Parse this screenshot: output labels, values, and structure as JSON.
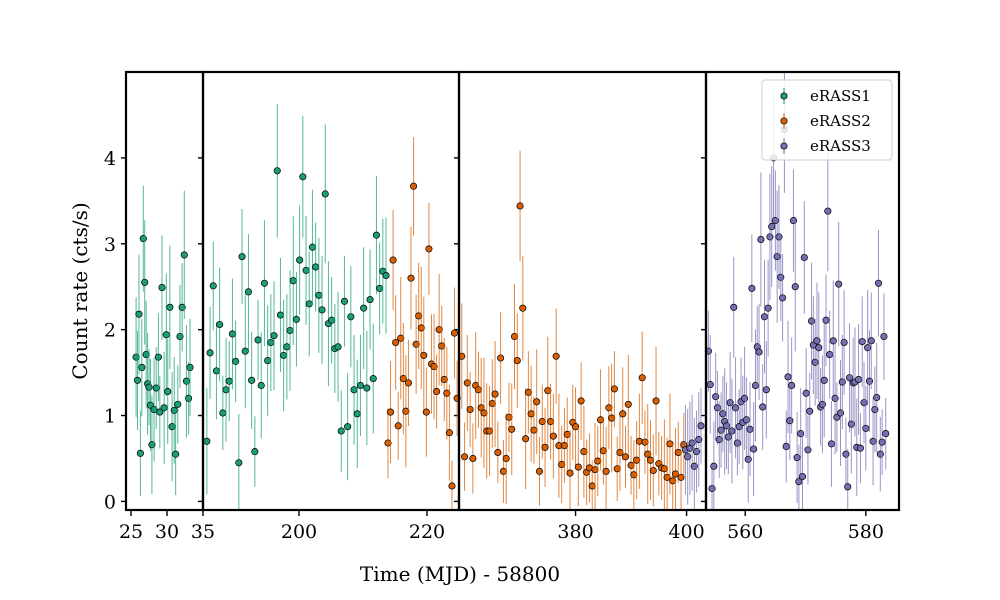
{
  "chart_data": {
    "type": "scatter",
    "title": "",
    "xlabel": "Time (MJD) - 58800",
    "ylabel": "Count rate (cts/s)",
    "ylim": [
      -0.1,
      5.0
    ],
    "yticks": [
      0,
      1,
      2,
      3,
      4
    ],
    "grid": false,
    "legend_position": "top-right",
    "colors": {
      "eRASS1": "#1b9e77",
      "eRASS2": "#d95f02",
      "eRASS3": "#7570b3"
    },
    "panels": [
      {
        "xlim": [
          24.3,
          35.0
        ],
        "xticks": [
          25,
          30,
          35
        ]
      },
      {
        "xlim": [
          185.0,
          225.0
        ],
        "xticks": [
          200,
          220
        ]
      },
      {
        "xlim": [
          359.0,
          403.5
        ],
        "xticks": [
          380,
          400
        ]
      },
      {
        "xlim": [
          553.5,
          585.5
        ],
        "xticks": [
          560,
          580
        ]
      }
    ],
    "series": [
      {
        "name": "eRASS1",
        "panels": [
          {
            "x": [
              25.7,
              25.9,
              26.1,
              26.3,
              26.5,
              26.7,
              26.9,
              27.1,
              27.3,
              27.5,
              27.7,
              27.9,
              28.2,
              28.5,
              28.8,
              29.0,
              29.3,
              29.6,
              29.9,
              30.1,
              30.4,
              30.7,
              31.0,
              31.2,
              31.5,
              31.8,
              32.1,
              32.4,
              32.7,
              33.0,
              33.2
            ],
            "y": [
              1.68,
              1.41,
              2.18,
              0.56,
              1.56,
              3.06,
              2.55,
              1.71,
              1.37,
              1.33,
              1.12,
              0.66,
              1.07,
              1.32,
              1.68,
              1.04,
              2.49,
              1.09,
              1.94,
              1.28,
              2.26,
              0.87,
              1.06,
              0.55,
              1.13,
              1.92,
              2.26,
              2.87,
              1.4,
              1.2,
              1.56
            ]
          },
          {
            "x": [
              185.6,
              186.1,
              186.6,
              187.1,
              187.6,
              188.1,
              188.6,
              189.1,
              189.6,
              190.1,
              190.6,
              191.1,
              191.6,
              192.1,
              192.6,
              193.1,
              193.6,
              194.1,
              194.6,
              195.1,
              195.6,
              196.1,
              196.6,
              197.1,
              197.6,
              198.1,
              198.6,
              199.1,
              199.6,
              200.1,
              200.6,
              201.1,
              201.6,
              202.1,
              202.6,
              203.1,
              203.6,
              204.1,
              204.6,
              205.1,
              205.6,
              206.1,
              206.6,
              207.1,
              207.6,
              208.1,
              208.6,
              209.1,
              209.6,
              210.1,
              210.6,
              211.1,
              211.6,
              212.1,
              212.6,
              213.1,
              213.6
            ],
            "y": [
              0.7,
              1.73,
              2.51,
              1.52,
              2.06,
              1.03,
              1.3,
              1.4,
              1.95,
              1.63,
              0.45,
              2.85,
              1.75,
              2.44,
              1.41,
              0.58,
              1.88,
              1.35,
              2.54,
              1.64,
              1.85,
              1.93,
              3.85,
              2.17,
              1.7,
              1.8,
              1.99,
              2.57,
              2.12,
              2.81,
              3.78,
              2.69,
              2.3,
              2.96,
              2.73,
              2.4,
              2.23,
              3.58,
              2.07,
              2.11,
              1.78,
              1.8,
              0.82,
              2.33,
              0.87,
              2.15,
              1.3,
              1.02,
              1.35,
              2.25,
              1.32,
              2.35,
              1.43,
              3.1,
              2.48,
              2.68,
              2.63
            ]
          }
        ]
      },
      {
        "name": "eRASS2",
        "panels": [
          {
            "x": [
              213.9,
              214.3,
              214.7,
              215.1,
              215.5,
              215.9,
              216.3,
              216.7,
              217.1,
              217.5,
              217.9,
              218.3,
              218.7,
              219.1,
              219.5,
              219.9,
              220.3,
              220.7,
              221.1,
              221.5,
              221.9,
              222.3,
              222.7,
              223.1,
              223.5,
              223.9,
              224.3,
              224.7
            ],
            "y": [
              0.68,
              1.04,
              2.81,
              1.85,
              0.88,
              1.9,
              1.43,
              1.05,
              1.38,
              2.6,
              3.67,
              1.83,
              2.16,
              2.02,
              1.7,
              1.04,
              2.94,
              1.6,
              1.57,
              1.28,
              2.0,
              1.81,
              1.42,
              1.26,
              0.8,
              0.18,
              1.96,
              1.2
            ]
          },
          {
            "x": [
              359.5,
              360.0,
              360.5,
              361.0,
              361.5,
              362.0,
              362.5,
              363.0,
              363.5,
              364.0,
              364.5,
              365.0,
              365.5,
              366.0,
              366.5,
              367.0,
              367.5,
              368.0,
              368.5,
              369.0,
              369.5,
              370.0,
              370.5,
              371.0,
              371.5,
              372.0,
              372.5,
              373.0,
              373.5,
              374.0,
              374.5,
              375.0,
              375.5,
              376.0,
              376.5,
              377.0,
              377.5,
              378.0,
              378.5,
              379.0,
              379.5,
              380.0,
              380.5,
              381.0,
              381.5,
              382.0,
              382.5,
              383.0,
              383.5,
              384.0,
              384.5,
              385.0,
              385.5,
              386.0,
              386.5,
              387.0,
              387.5,
              388.0,
              388.5,
              389.0,
              389.5,
              390.0,
              390.5,
              391.0,
              391.5,
              392.0,
              392.5,
              393.0,
              393.5,
              394.0,
              394.5,
              395.0,
              395.5,
              396.0,
              396.5,
              397.0,
              397.5,
              398.0,
              398.5,
              399.0,
              399.5
            ],
            "y": [
              1.69,
              0.52,
              1.38,
              1.07,
              0.5,
              1.35,
              1.3,
              1.09,
              1.03,
              0.82,
              0.82,
              1.14,
              1.25,
              0.57,
              1.67,
              0.35,
              0.5,
              0.98,
              0.84,
              1.92,
              1.64,
              3.44,
              2.25,
              0.73,
              1.27,
              1.02,
              0.83,
              1.16,
              0.35,
              0.93,
              0.63,
              1.29,
              0.93,
              0.76,
              1.69,
              0.65,
              0.43,
              0.65,
              0.78,
              0.33,
              0.92,
              0.87,
              0.4,
              1.17,
              0.58,
              0.34,
              0.39,
              0.18,
              0.37,
              0.47,
              0.95,
              0.59,
              0.35,
              1.09,
              0.97,
              1.31,
              0.38,
              0.57,
              1.02,
              0.52,
              1.13,
              0.42,
              0.31,
              0.48,
              0.7,
              1.44,
              0.69,
              0.55,
              0.48,
              0.36,
              1.17,
              0.44,
              0.39,
              0.38,
              0.28,
              0.67,
              0.24,
              0.32,
              0.57,
              0.28,
              0.66
            ]
          }
        ]
      },
      {
        "name": "eRASS3",
        "panels": [
          {
            "x": [
              399.8,
              400.2,
              400.6,
              401.0,
              401.4,
              401.8,
              402.2,
              402.6
            ],
            "y": [
              0.6,
              0.52,
              0.62,
              0.68,
              0.41,
              0.58,
              0.72,
              0.88
            ]
          },
          {
            "x": [
              553.9,
              554.2,
              554.5,
              554.8,
              555.1,
              555.4,
              555.7,
              556.0,
              556.3,
              556.6,
              556.9,
              557.2,
              557.5,
              557.8,
              558.1,
              558.4,
              558.7,
              559.0,
              559.3,
              559.6,
              559.9,
              560.2,
              560.5,
              560.8,
              561.1,
              561.4,
              561.7,
              562.0,
              562.3,
              562.6,
              562.9,
              563.2,
              563.5,
              563.8,
              564.1,
              564.4,
              564.7,
              565.0,
              565.3,
              565.6,
              565.9,
              566.2,
              566.5,
              566.8,
              567.1,
              567.4,
              567.7,
              568.0,
              568.3,
              568.6,
              568.9,
              569.2,
              569.5,
              569.8,
              570.1,
              570.4,
              570.7,
              571.0,
              571.3,
              571.6,
              571.9,
              572.2,
              572.5,
              572.8,
              573.1,
              573.4,
              573.7,
              574.0,
              574.3,
              574.6,
              574.9,
              575.2,
              575.5,
              575.8,
              576.1,
              576.4,
              576.7,
              577.0,
              577.3,
              577.6,
              577.9,
              578.2,
              578.5,
              578.8,
              579.1,
              579.4,
              579.7,
              580.0,
              580.3,
              580.6,
              580.9,
              581.2,
              581.5,
              581.8,
              582.1,
              582.4,
              582.7,
              583.0,
              583.3
            ],
            "y": [
              1.75,
              1.36,
              0.15,
              0.41,
              1.22,
              1.09,
              0.72,
              0.83,
              1.02,
              0.93,
              0.88,
              0.75,
              1.15,
              0.82,
              2.26,
              1.09,
              0.68,
              0.87,
              1.16,
              0.92,
              1.2,
              0.95,
              0.49,
              0.84,
              2.48,
              0.61,
              1.35,
              1.8,
              1.74,
              3.05,
              1.1,
              2.15,
              1.3,
              2.25,
              3.08,
              3.2,
              4.0,
              3.27,
              2.85,
              3.08,
              2.61,
              2.37,
              4.33,
              0.64,
              1.45,
              0.94,
              1.35,
              3.27,
              2.5,
              0.51,
              0.23,
              0.79,
              0.29,
              2.84,
              1.26,
              0.6,
              1.05,
              2.1,
              1.82,
              1.62,
              1.87,
              1.79,
              1.1,
              1.13,
              1.41,
              2.11,
              3.38,
              1.71,
              0.67,
              1.87,
              1.2,
              0.98,
              2.53,
              1.03,
              1.39,
              1.85,
              0.55,
              0.17,
              1.44,
              0.9,
              1.38,
              1.39,
              0.63,
              1.42,
              0.62,
              1.86,
              1.15,
              0.85,
              1.79,
              1.4,
              1.87,
              0.7,
              1.07,
              1.21,
              2.54,
              0.55,
              0.69,
              1.92,
              0.79
            ]
          }
        ]
      }
    ]
  }
}
